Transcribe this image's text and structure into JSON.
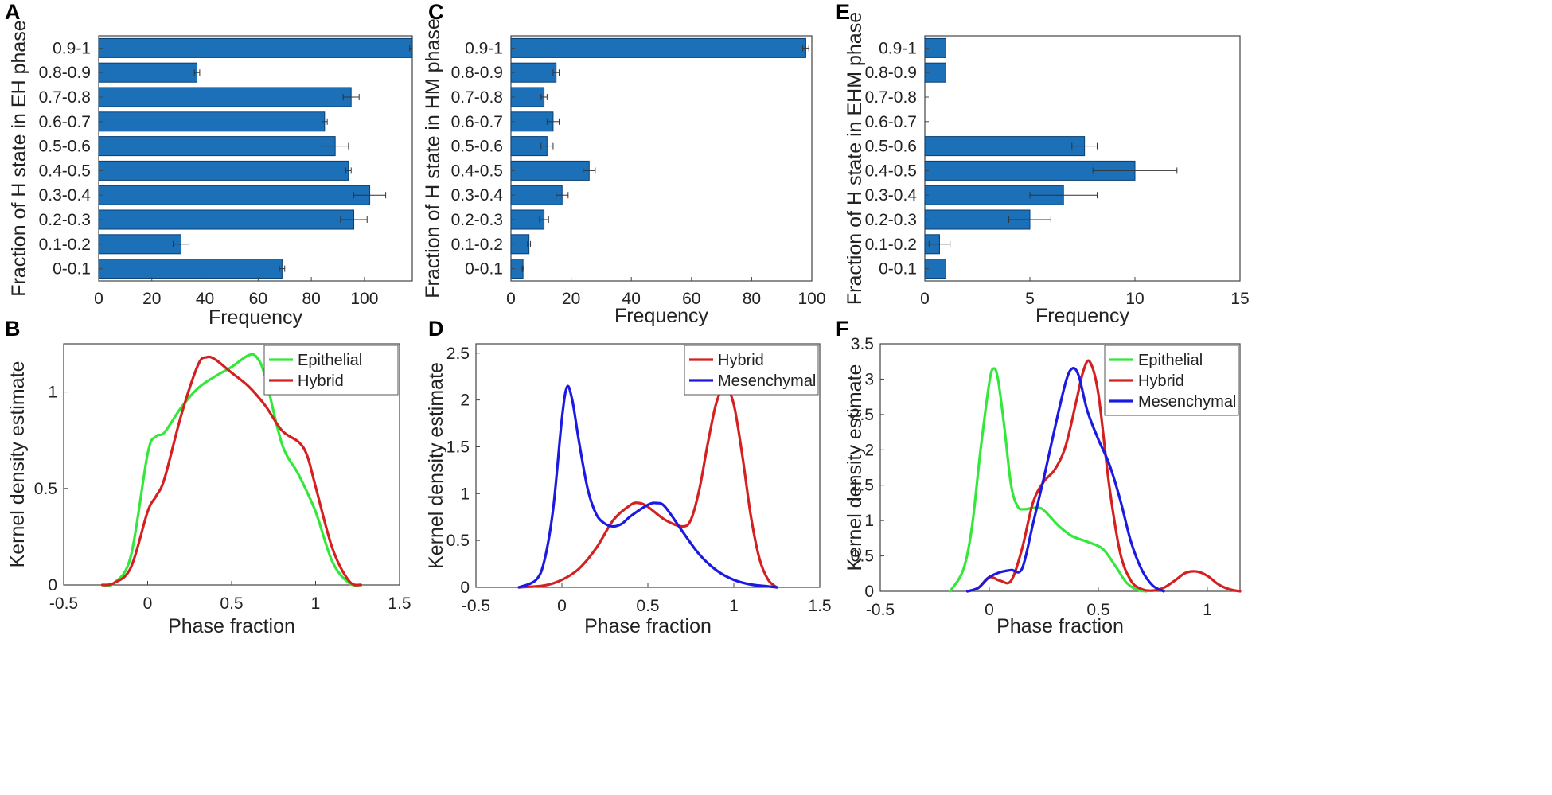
{
  "chart_data": [
    {
      "panel": "A",
      "type": "bar",
      "orientation": "horizontal",
      "ylabel": "Fraction of H state in EH phase",
      "xlabel": "Frequency",
      "categories": [
        "0-0.1",
        "0.1-0.2",
        "0.2-0.3",
        "0.3-0.4",
        "0.4-0.5",
        "0.5-0.6",
        "0.6-0.7",
        "0.7-0.8",
        "0.8-0.9",
        "0.9-1"
      ],
      "values": [
        69,
        31,
        96,
        102,
        94,
        89,
        85,
        95,
        37,
        118
      ],
      "errors": [
        1,
        3,
        5,
        6,
        1,
        5,
        1,
        3,
        1,
        1
      ],
      "xlim": [
        0,
        118
      ],
      "xticks": [
        0,
        20,
        40,
        60,
        80,
        100
      ],
      "xtick_labels": [
        "0",
        "20",
        "40",
        "60",
        "80",
        "100"
      ],
      "bar_color": "#1b70b8"
    },
    {
      "panel": "C",
      "type": "bar",
      "orientation": "horizontal",
      "ylabel": "Fraction of H state in HM phase",
      "xlabel": "Frequency",
      "categories": [
        "0-0.1",
        "0.1-0.2",
        "0.2-0.3",
        "0.3-0.4",
        "0.4-0.5",
        "0.5-0.6",
        "0.6-0.7",
        "0.7-0.8",
        "0.8-0.9",
        "0.9-1"
      ],
      "values": [
        4,
        6,
        11,
        17,
        26,
        12,
        14,
        11,
        15,
        98
      ],
      "errors": [
        0.3,
        0.5,
        1.5,
        2,
        2,
        2,
        2,
        1,
        1,
        1
      ],
      "xlim": [
        0,
        100
      ],
      "xticks": [
        0,
        20,
        40,
        60,
        80,
        100
      ],
      "xtick_labels": [
        "0",
        "20",
        "40",
        "60",
        "80",
        "100"
      ],
      "bar_color": "#1b70b8"
    },
    {
      "panel": "E",
      "type": "bar",
      "orientation": "horizontal",
      "ylabel": "Fraction of H state in EHM phase",
      "xlabel": "Frequency",
      "categories": [
        "0-0.1",
        "0.1-0.2",
        "0.2-0.3",
        "0.3-0.4",
        "0.4-0.5",
        "0.5-0.6",
        "0.6-0.7",
        "0.7-0.8",
        "0.8-0.9",
        "0.9-1"
      ],
      "values": [
        1,
        0.7,
        5,
        6.6,
        10,
        7.6,
        0,
        0,
        1,
        1
      ],
      "errors": [
        0,
        0.5,
        1,
        1.6,
        2,
        0.6,
        0,
        0,
        0,
        0
      ],
      "xlim": [
        0,
        15
      ],
      "xticks": [
        0,
        5,
        10,
        15
      ],
      "xtick_labels": [
        "0",
        "5",
        "10",
        "15"
      ],
      "bar_color": "#1b70b8"
    },
    {
      "panel": "B",
      "type": "line",
      "xlabel": "Phase fraction",
      "ylabel": "Kernel density estimate",
      "xlim": [
        -0.5,
        1.5
      ],
      "ylim": [
        0,
        1.25
      ],
      "xticks": [
        -0.5,
        0,
        0.5,
        1,
        1.5
      ],
      "xtick_labels": [
        "-0.5",
        "0",
        "0.5",
        "1",
        "1.5"
      ],
      "yticks": [
        0,
        0.5,
        1
      ],
      "ytick_labels": [
        "0",
        "0.5",
        "1"
      ],
      "legend_position": "top-right",
      "series": [
        {
          "name": "Epithelial",
          "color": "#33e83a",
          "x": [
            -0.27,
            -0.2,
            -0.1,
            0,
            0.05,
            0.1,
            0.2,
            0.3,
            0.4,
            0.5,
            0.6,
            0.65,
            0.7,
            0.8,
            0.9,
            1,
            1.1,
            1.2,
            1.27
          ],
          "y": [
            0,
            0.01,
            0.15,
            0.68,
            0.77,
            0.79,
            0.92,
            1.02,
            1.08,
            1.13,
            1.19,
            1.18,
            1.08,
            0.73,
            0.57,
            0.38,
            0.12,
            0.01,
            0
          ]
        },
        {
          "name": "Hybrid",
          "color": "#d42020",
          "x": [
            -0.27,
            -0.2,
            -0.1,
            0,
            0.05,
            0.1,
            0.2,
            0.3,
            0.35,
            0.4,
            0.5,
            0.6,
            0.7,
            0.8,
            0.9,
            0.95,
            1,
            1.1,
            1.2,
            1.27
          ],
          "y": [
            0,
            0.01,
            0.09,
            0.38,
            0.46,
            0.55,
            0.88,
            1.14,
            1.18,
            1.17,
            1.1,
            1.03,
            0.93,
            0.8,
            0.74,
            0.67,
            0.51,
            0.19,
            0.02,
            0
          ]
        }
      ]
    },
    {
      "panel": "D",
      "type": "line",
      "xlabel": "Phase fraction",
      "ylabel": "Kernel density estimate",
      "xlim": [
        -0.5,
        1.5
      ],
      "ylim": [
        0,
        2.6
      ],
      "xticks": [
        -0.5,
        0,
        0.5,
        1,
        1.5
      ],
      "xtick_labels": [
        "-0.5",
        "0",
        "0.5",
        "1",
        "1.5"
      ],
      "yticks": [
        0,
        0.5,
        1,
        1.5,
        2,
        2.5
      ],
      "ytick_labels": [
        "0",
        "0.5",
        "1",
        "1.5",
        "2",
        "2.5"
      ],
      "legend_position": "top-right",
      "series": [
        {
          "name": "Hybrid",
          "color": "#d42020",
          "x": [
            -0.25,
            -0.1,
            0,
            0.1,
            0.2,
            0.3,
            0.4,
            0.45,
            0.5,
            0.6,
            0.7,
            0.75,
            0.8,
            0.85,
            0.9,
            0.95,
            1,
            1.05,
            1.1,
            1.15,
            1.2,
            1.25
          ],
          "y": [
            0,
            0.02,
            0.08,
            0.2,
            0.42,
            0.72,
            0.88,
            0.9,
            0.86,
            0.72,
            0.65,
            0.72,
            1.05,
            1.55,
            1.98,
            2.14,
            1.95,
            1.4,
            0.75,
            0.3,
            0.08,
            0
          ]
        },
        {
          "name": "Mesenchymal",
          "color": "#1a1ae0",
          "x": [
            -0.25,
            -0.15,
            -0.1,
            -0.05,
            0,
            0.03,
            0.06,
            0.1,
            0.15,
            0.2,
            0.25,
            0.3,
            0.35,
            0.4,
            0.5,
            0.55,
            0.6,
            0.7,
            0.8,
            0.9,
            1,
            1.1,
            1.2,
            1.25
          ],
          "y": [
            0,
            0.08,
            0.3,
            0.85,
            1.8,
            2.14,
            2.0,
            1.55,
            1.05,
            0.78,
            0.68,
            0.65,
            0.68,
            0.76,
            0.88,
            0.9,
            0.86,
            0.6,
            0.35,
            0.18,
            0.08,
            0.03,
            0.01,
            0
          ]
        }
      ]
    },
    {
      "panel": "F",
      "type": "line",
      "xlabel": "Phase fraction",
      "ylabel": "Kernel density estimate",
      "xlim": [
        -0.5,
        1.15
      ],
      "ylim": [
        0,
        3.5
      ],
      "xticks": [
        -0.5,
        0,
        0.5,
        1
      ],
      "xtick_labels": [
        "-0.5",
        "0",
        "0.5",
        "1"
      ],
      "yticks": [
        0,
        0.5,
        1,
        1.5,
        2,
        2.5,
        3,
        3.5
      ],
      "ytick_labels": [
        "0",
        "0.5",
        "1",
        "1.5",
        "2",
        "2.5",
        "3",
        "3.5"
      ],
      "legend_position": "top-right",
      "series": [
        {
          "name": "Epithelial",
          "color": "#33e83a",
          "x": [
            -0.18,
            -0.12,
            -0.08,
            -0.04,
            0,
            0.02,
            0.04,
            0.07,
            0.1,
            0.13,
            0.16,
            0.2,
            0.24,
            0.28,
            0.32,
            0.38,
            0.45,
            0.52,
            0.58,
            0.63,
            0.68,
            0.72
          ],
          "y": [
            0,
            0.3,
            0.9,
            2.0,
            2.95,
            3.15,
            3.0,
            2.3,
            1.5,
            1.2,
            1.16,
            1.18,
            1.17,
            1.05,
            0.92,
            0.78,
            0.7,
            0.6,
            0.35,
            0.12,
            0.02,
            0
          ]
        },
        {
          "name": "Hybrid",
          "color": "#d42020",
          "x": [
            -0.1,
            -0.05,
            0,
            0.05,
            0.1,
            0.15,
            0.2,
            0.25,
            0.3,
            0.35,
            0.4,
            0.43,
            0.46,
            0.5,
            0.55,
            0.6,
            0.65,
            0.7,
            0.75,
            0.8,
            0.85,
            0.9,
            0.95,
            1.0,
            1.05,
            1.1,
            1.15
          ],
          "y": [
            0,
            0.05,
            0.2,
            0.15,
            0.15,
            0.6,
            1.25,
            1.55,
            1.72,
            2.05,
            2.7,
            3.1,
            3.25,
            2.8,
            1.5,
            0.55,
            0.15,
            0.03,
            0.01,
            0.05,
            0.15,
            0.26,
            0.28,
            0.22,
            0.1,
            0.03,
            0
          ]
        },
        {
          "name": "Mesenchymal",
          "color": "#1a1ae0",
          "x": [
            -0.1,
            -0.05,
            0,
            0.05,
            0.1,
            0.15,
            0.2,
            0.25,
            0.3,
            0.35,
            0.38,
            0.41,
            0.45,
            0.5,
            0.55,
            0.6,
            0.65,
            0.7,
            0.75,
            0.8
          ],
          "y": [
            0,
            0.05,
            0.2,
            0.27,
            0.3,
            0.32,
            0.95,
            1.6,
            2.3,
            2.95,
            3.15,
            3.05,
            2.55,
            2.15,
            1.8,
            1.3,
            0.7,
            0.3,
            0.08,
            0
          ]
        }
      ]
    }
  ]
}
